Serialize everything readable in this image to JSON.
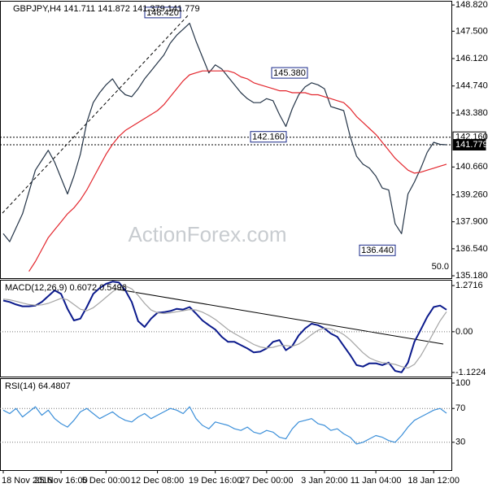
{
  "chart_data": [
    {
      "type": "line",
      "title": "GBPJPY,H4  141.711 141.872 141.379 141.779",
      "watermark": "ActionForex.com",
      "corner_label": "50.0",
      "ylim": [
        135.06,
        149.03
      ],
      "yticks": [
        {
          "value": 148.82,
          "label": "148.820"
        },
        {
          "value": 147.5,
          "label": "147.500"
        },
        {
          "value": 146.12,
          "label": "146.120"
        },
        {
          "value": 144.74,
          "label": "144.740"
        },
        {
          "value": 143.38,
          "label": "143.380"
        },
        {
          "value": 140.66,
          "label": "140.660"
        },
        {
          "value": 139.26,
          "label": "139.260"
        },
        {
          "value": 137.9,
          "label": "137.900"
        },
        {
          "value": 136.54,
          "label": "136.540"
        },
        {
          "value": 135.18,
          "label": "135.180"
        }
      ],
      "price_lines": [
        {
          "value": 142.16,
          "label": "142.160",
          "style": "outline"
        },
        {
          "value": 141.779,
          "label": "141.779",
          "style": "filled"
        }
      ],
      "annotations": [
        {
          "value": 148.42,
          "label": "148.420"
        },
        {
          "value": 145.38,
          "label": "145.380"
        },
        {
          "value": 142.16,
          "label": "142.160"
        },
        {
          "value": 136.44,
          "label": "136.440"
        }
      ],
      "series": [
        {
          "color": "#243447",
          "values": [
            137.3,
            136.9,
            137.6,
            138.3,
            139.4,
            140.5,
            141.0,
            141.5,
            140.9,
            140.1,
            139.3,
            140.2,
            141.3,
            142.9,
            143.9,
            144.4,
            144.8,
            145.1,
            144.6,
            144.3,
            144.2,
            144.6,
            145.1,
            145.5,
            145.9,
            146.3,
            146.9,
            147.3,
            147.6,
            147.9,
            147.0,
            146.2,
            145.4,
            145.8,
            145.6,
            145.2,
            144.8,
            144.4,
            144.1,
            143.9,
            143.9,
            144.1,
            144.0,
            143.3,
            142.7,
            143.6,
            144.3,
            144.7,
            144.9,
            144.8,
            144.6,
            143.7,
            143.6,
            143.5,
            142.2,
            141.2,
            140.8,
            140.6,
            140.2,
            139.6,
            139.5,
            137.8,
            137.3,
            139.3,
            139.9,
            140.6,
            141.4,
            141.9,
            141.8,
            141.779
          ]
        },
        {
          "color": "#e3262d",
          "values": [
            null,
            null,
            null,
            null,
            135.4,
            135.9,
            136.5,
            137.1,
            137.5,
            137.9,
            138.3,
            138.6,
            139.0,
            139.5,
            140.1,
            140.7,
            141.3,
            141.8,
            142.2,
            142.5,
            142.7,
            142.9,
            143.1,
            143.3,
            143.5,
            143.8,
            144.2,
            144.6,
            145.0,
            145.3,
            145.4,
            145.5,
            145.5,
            145.5,
            145.5,
            145.5,
            145.4,
            145.2,
            145.1,
            144.9,
            144.8,
            144.7,
            144.6,
            144.5,
            144.5,
            144.4,
            144.4,
            144.4,
            144.3,
            144.3,
            144.2,
            144.1,
            144.0,
            143.9,
            143.6,
            143.2,
            142.9,
            142.6,
            142.3,
            141.9,
            141.5,
            141.1,
            140.8,
            140.5,
            140.35,
            140.4,
            140.5,
            140.6,
            140.7,
            140.8
          ]
        }
      ]
    },
    {
      "type": "line",
      "title": "MACD(12,26,9) 0.6072 0.5496",
      "ylim": [
        -1.236,
        1.431
      ],
      "yticks": [
        1.2716,
        {
          "value": 0,
          "label": "0.00"
        },
        -1.1224
      ],
      "levels": [
        0
      ],
      "series": [
        {
          "color": "#0b1a8c",
          "values": [
            0.86,
            0.82,
            0.75,
            0.7,
            0.7,
            0.72,
            0.82,
            0.98,
            1.14,
            1.04,
            0.63,
            0.31,
            0.36,
            0.68,
            1.04,
            1.2,
            1.32,
            1.38,
            1.36,
            1.14,
            0.82,
            0.29,
            0.13,
            0.36,
            0.52,
            0.54,
            0.57,
            0.63,
            0.61,
            0.68,
            0.5,
            0.31,
            0.18,
            0.06,
            -0.14,
            -0.28,
            -0.28,
            -0.37,
            -0.46,
            -0.57,
            -0.55,
            -0.46,
            -0.28,
            -0.23,
            -0.51,
            -0.39,
            -0.1,
            0.09,
            0.22,
            0.18,
            0.09,
            -0.05,
            -0.14,
            -0.39,
            -0.64,
            -0.92,
            -0.96,
            -0.87,
            -0.87,
            -0.92,
            -0.85,
            -1.08,
            -1.12,
            -0.85,
            -0.28,
            0.06,
            0.41,
            0.68,
            0.72,
            0.6072
          ]
        },
        {
          "color": "#a4a4a4",
          "values": [
            0.9,
            0.88,
            0.84,
            0.79,
            0.75,
            0.73,
            0.74,
            0.78,
            0.85,
            0.92,
            0.88,
            0.75,
            0.62,
            0.58,
            0.66,
            0.8,
            0.95,
            1.1,
            1.22,
            1.26,
            1.18,
            1.0,
            0.78,
            0.6,
            0.52,
            0.5,
            0.52,
            0.55,
            0.58,
            0.61,
            0.6,
            0.54,
            0.45,
            0.34,
            0.2,
            0.06,
            -0.05,
            -0.15,
            -0.25,
            -0.35,
            -0.42,
            -0.45,
            -0.43,
            -0.38,
            -0.38,
            -0.4,
            -0.34,
            -0.22,
            -0.08,
            0.04,
            0.1,
            0.08,
            0.02,
            -0.08,
            -0.22,
            -0.4,
            -0.58,
            -0.72,
            -0.8,
            -0.85,
            -0.87,
            -0.9,
            -0.96,
            -1.0,
            -0.9,
            -0.66,
            -0.35,
            -0.02,
            0.3,
            0.5496
          ]
        }
      ]
    },
    {
      "type": "line",
      "title": "RSI(14) 64.4807",
      "ylim": [
        -2.9,
        105.8
      ],
      "yticks": [
        100,
        70,
        30
      ],
      "levels": [
        70,
        30
      ],
      "categories": [
        "18 Nov 2016",
        null,
        null,
        null,
        null,
        null,
        null,
        null,
        null,
        "25 Nov 16:00",
        null,
        null,
        null,
        null,
        null,
        null,
        "5 Dec 00:00",
        null,
        null,
        null,
        null,
        null,
        null,
        null,
        "12 Dec 08:00",
        null,
        null,
        null,
        null,
        null,
        null,
        null,
        null,
        "19 Dec 16:00",
        null,
        null,
        null,
        null,
        null,
        null,
        null,
        "27 Dec 00:00",
        null,
        null,
        null,
        null,
        null,
        null,
        null,
        null,
        "3 Jan 20:00",
        null,
        null,
        null,
        null,
        null,
        null,
        null,
        "11 Jan 04:00",
        null,
        null,
        null,
        null,
        null,
        null,
        null,
        null,
        "18 Jan 12:00",
        null,
        null
      ],
      "series": [
        {
          "color": "#3b8fd9",
          "values": [
            68,
            64,
            70,
            60,
            66,
            72,
            62,
            68,
            58,
            52,
            48,
            56,
            66,
            70,
            64,
            58,
            62,
            66,
            60,
            56,
            54,
            60,
            64,
            58,
            62,
            66,
            70,
            68,
            64,
            72,
            58,
            50,
            46,
            54,
            52,
            50,
            46,
            44,
            48,
            42,
            40,
            44,
            42,
            36,
            34,
            46,
            54,
            56,
            58,
            52,
            50,
            44,
            46,
            40,
            36,
            28,
            30,
            34,
            38,
            36,
            32,
            30,
            38,
            48,
            56,
            60,
            64,
            68,
            70,
            64.4807
          ]
        }
      ]
    }
  ]
}
